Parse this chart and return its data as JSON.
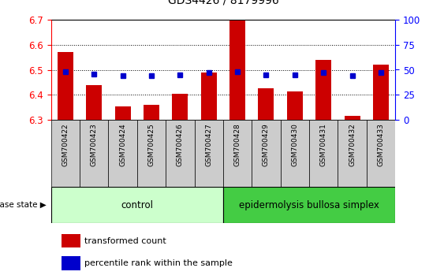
{
  "title": "GDS4426 / 8179996",
  "samples": [
    "GSM700422",
    "GSM700423",
    "GSM700424",
    "GSM700425",
    "GSM700426",
    "GSM700427",
    "GSM700428",
    "GSM700429",
    "GSM700430",
    "GSM700431",
    "GSM700432",
    "GSM700433"
  ],
  "bar_values": [
    6.57,
    6.44,
    6.355,
    6.36,
    6.405,
    6.49,
    6.695,
    6.425,
    6.415,
    6.54,
    6.315,
    6.52
  ],
  "percentile_values": [
    48,
    46,
    44,
    44,
    45,
    47,
    48,
    45,
    45,
    47,
    44,
    47
  ],
  "ylim_left": [
    6.3,
    6.7
  ],
  "ylim_right": [
    0,
    100
  ],
  "yticks_left": [
    6.3,
    6.4,
    6.5,
    6.6,
    6.7
  ],
  "yticks_right": [
    0,
    25,
    50,
    75,
    100
  ],
  "bar_color": "#cc0000",
  "marker_color": "#0000cc",
  "bar_baseline": 6.3,
  "control_samples": 6,
  "control_label": "control",
  "disease_label": "epidermolysis bullosa simplex",
  "disease_state_label": "disease state",
  "legend_bar_label": "transformed count",
  "legend_marker_label": "percentile rank within the sample",
  "control_bg": "#ccffcc",
  "disease_bg": "#44cc44",
  "tick_label_bg": "#cccccc",
  "border_color": "#000000",
  "plot_bg": "#ffffff",
  "title_fontsize": 10,
  "tick_fontsize": 8.5
}
